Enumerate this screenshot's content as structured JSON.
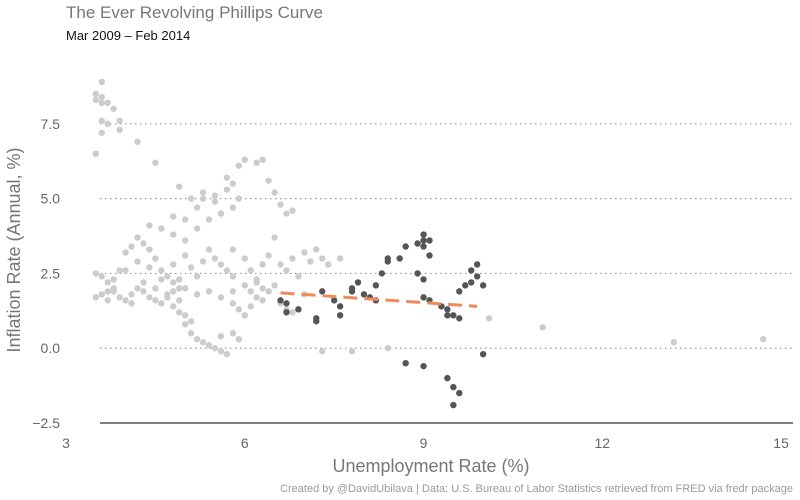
{
  "chart_data": {
    "type": "scatter",
    "title": "The Ever Revolving Phillips Curve",
    "subtitle": "Mar 2009 – Feb 2014",
    "xlabel": "Unemployment Rate (%)",
    "ylabel": "Inflation Rate (Annual, %)",
    "caption": "Created by @DavidUbilava | Data: U.S. Bureau of Labor Statistics retrieved from FRED via fredr package",
    "xlim": [
      3,
      15.2
    ],
    "ylim": [
      -2.7,
      9.8
    ],
    "xticks": [
      3,
      6,
      9,
      12,
      15
    ],
    "yticks": [
      -2.5,
      0.0,
      2.5,
      5.0,
      7.5
    ],
    "xtick_labels": [
      "3",
      "6",
      "9",
      "12",
      "15"
    ],
    "ytick_labels": [
      "−2.5",
      "0.0",
      "2.5",
      "5.0",
      "7.5"
    ],
    "grid": "horizontal dotted",
    "colors": {
      "background_points": "#cccccc",
      "highlight_points": "#555555",
      "trend_line": "#f08a5d",
      "grid": "#999999",
      "axis": "#333333"
    },
    "series": [
      {
        "role": "background",
        "points": [
          [
            3.5,
            8.3
          ],
          [
            3.5,
            8.5
          ],
          [
            3.6,
            8.9
          ],
          [
            3.6,
            8.4
          ],
          [
            3.6,
            8.2
          ],
          [
            3.7,
            8.2
          ],
          [
            3.8,
            8.0
          ],
          [
            3.6,
            7.6
          ],
          [
            3.7,
            7.5
          ],
          [
            3.9,
            7.6
          ],
          [
            3.9,
            7.3
          ],
          [
            3.6,
            7.2
          ],
          [
            4.2,
            6.9
          ],
          [
            3.5,
            6.5
          ],
          [
            4.5,
            6.2
          ],
          [
            3.5,
            2.5
          ],
          [
            3.6,
            2.4
          ],
          [
            3.7,
            2.2
          ],
          [
            3.8,
            1.9
          ],
          [
            3.9,
            2.6
          ],
          [
            4.0,
            3.2
          ],
          [
            4.1,
            3.4
          ],
          [
            4.2,
            3.7
          ],
          [
            4.3,
            3.5
          ],
          [
            4.4,
            3.3
          ],
          [
            4.5,
            3.0
          ],
          [
            4.6,
            2.6
          ],
          [
            4.7,
            2.4
          ],
          [
            4.8,
            2.2
          ],
          [
            4.9,
            2.0
          ],
          [
            3.5,
            1.7
          ],
          [
            3.6,
            1.8
          ],
          [
            3.7,
            1.9
          ],
          [
            3.8,
            2.0
          ],
          [
            3.9,
            1.7
          ],
          [
            4.0,
            1.6
          ],
          [
            4.1,
            1.8
          ],
          [
            4.2,
            2.0
          ],
          [
            4.3,
            1.9
          ],
          [
            4.4,
            1.7
          ],
          [
            4.5,
            1.6
          ],
          [
            4.6,
            1.5
          ],
          [
            4.7,
            1.7
          ],
          [
            4.8,
            1.9
          ],
          [
            4.9,
            1.6
          ],
          [
            3.8,
            2.3
          ],
          [
            4.0,
            2.6
          ],
          [
            4.2,
            2.9
          ],
          [
            4.4,
            2.7
          ],
          [
            4.6,
            2.3
          ],
          [
            4.8,
            2.8
          ],
          [
            5.0,
            3.1
          ],
          [
            5.1,
            2.7
          ],
          [
            5.2,
            2.4
          ],
          [
            5.3,
            2.9
          ],
          [
            5.4,
            3.3
          ],
          [
            5.5,
            3.0
          ],
          [
            5.6,
            2.8
          ],
          [
            5.7,
            2.6
          ],
          [
            5.8,
            2.4
          ],
          [
            3.7,
            1.6
          ],
          [
            4.1,
            1.5
          ],
          [
            4.3,
            2.2
          ],
          [
            4.5,
            2.0
          ],
          [
            4.7,
            1.8
          ],
          [
            4.9,
            2.3
          ],
          [
            5.0,
            2.0
          ],
          [
            5.2,
            1.8
          ],
          [
            5.4,
            1.9
          ],
          [
            5.6,
            1.7
          ],
          [
            5.8,
            1.9
          ],
          [
            6.0,
            2.1
          ],
          [
            6.1,
            1.9
          ],
          [
            6.2,
            2.2
          ],
          [
            6.3,
            2.0
          ],
          [
            4.4,
            4.1
          ],
          [
            4.6,
            4.0
          ],
          [
            4.8,
            4.4
          ],
          [
            4.8,
            3.8
          ],
          [
            5.0,
            4.3
          ],
          [
            5.0,
            3.6
          ],
          [
            5.2,
            4.7
          ],
          [
            5.2,
            4.0
          ],
          [
            5.3,
            5.0
          ],
          [
            5.4,
            4.3
          ],
          [
            5.5,
            5.1
          ],
          [
            5.6,
            4.5
          ],
          [
            5.7,
            5.3
          ],
          [
            5.8,
            4.7
          ],
          [
            5.9,
            5.0
          ],
          [
            4.9,
            5.4
          ],
          [
            5.1,
            5.0
          ],
          [
            5.3,
            5.2
          ],
          [
            5.5,
            4.9
          ],
          [
            5.7,
            5.7
          ],
          [
            5.8,
            5.5
          ],
          [
            5.9,
            6.1
          ],
          [
            6.0,
            6.3
          ],
          [
            6.2,
            6.2
          ],
          [
            6.3,
            6.3
          ],
          [
            6.4,
            5.6
          ],
          [
            6.5,
            5.2
          ],
          [
            6.6,
            4.8
          ],
          [
            6.7,
            4.5
          ],
          [
            6.8,
            4.6
          ],
          [
            4.8,
            1.4
          ],
          [
            4.9,
            1.2
          ],
          [
            5.0,
            0.8
          ],
          [
            5.0,
            1.1
          ],
          [
            5.1,
            0.5
          ],
          [
            5.1,
            0.9
          ],
          [
            5.2,
            0.3
          ],
          [
            5.3,
            0.2
          ],
          [
            5.4,
            0.1
          ],
          [
            5.5,
            0.0
          ],
          [
            5.6,
            -0.1
          ],
          [
            5.6,
            0.4
          ],
          [
            5.7,
            -0.2
          ],
          [
            5.8,
            0.5
          ],
          [
            5.9,
            0.3
          ],
          [
            5.8,
            3.3
          ],
          [
            6.0,
            3.0
          ],
          [
            6.1,
            2.6
          ],
          [
            6.2,
            2.3
          ],
          [
            6.3,
            2.8
          ],
          [
            6.4,
            3.1
          ],
          [
            6.5,
            3.7
          ],
          [
            6.6,
            2.8
          ],
          [
            6.7,
            2.6
          ],
          [
            6.8,
            3.0
          ],
          [
            6.9,
            2.4
          ],
          [
            7.0,
            3.2
          ],
          [
            7.1,
            2.9
          ],
          [
            7.2,
            3.3
          ],
          [
            7.3,
            3.0
          ],
          [
            5.8,
            1.5
          ],
          [
            5.9,
            1.3
          ],
          [
            6.0,
            1.1
          ],
          [
            6.1,
            1.4
          ],
          [
            6.2,
            1.7
          ],
          [
            6.3,
            1.6
          ],
          [
            6.4,
            1.9
          ],
          [
            6.5,
            2.1
          ],
          [
            6.6,
            1.5
          ],
          [
            6.7,
            1.3
          ],
          [
            6.8,
            1.2
          ],
          [
            6.9,
            1.3
          ],
          [
            7.0,
            1.8
          ],
          [
            7.4,
            2.8
          ],
          [
            7.6,
            3.0
          ],
          [
            7.3,
            -0.1
          ],
          [
            7.8,
            -0.1
          ],
          [
            8.4,
            0.0
          ],
          [
            10.1,
            1.0
          ],
          [
            11.0,
            0.7
          ],
          [
            13.2,
            0.2
          ],
          [
            14.7,
            0.3
          ]
        ]
      },
      {
        "role": "highlight",
        "points": [
          [
            6.6,
            1.6
          ],
          [
            6.7,
            1.5
          ],
          [
            6.7,
            1.2
          ],
          [
            6.9,
            1.3
          ],
          [
            7.2,
            1.0
          ],
          [
            7.2,
            0.9
          ],
          [
            7.3,
            1.9
          ],
          [
            7.5,
            1.6
          ],
          [
            7.6,
            1.4
          ],
          [
            7.6,
            1.1
          ],
          [
            7.8,
            1.9
          ],
          [
            7.8,
            2.0
          ],
          [
            7.9,
            2.2
          ],
          [
            8.0,
            1.8
          ],
          [
            8.1,
            1.7
          ],
          [
            8.2,
            1.6
          ],
          [
            8.2,
            2.1
          ],
          [
            8.3,
            2.5
          ],
          [
            8.4,
            2.9
          ],
          [
            8.4,
            3.0
          ],
          [
            8.6,
            3.0
          ],
          [
            8.7,
            3.4
          ],
          [
            8.9,
            3.5
          ],
          [
            9.0,
            3.8
          ],
          [
            9.0,
            3.6
          ],
          [
            9.1,
            3.6
          ],
          [
            9.0,
            3.4
          ],
          [
            9.1,
            3.1
          ],
          [
            8.9,
            2.5
          ],
          [
            9.0,
            2.3
          ],
          [
            9.0,
            1.7
          ],
          [
            9.1,
            1.6
          ],
          [
            9.3,
            1.4
          ],
          [
            9.4,
            1.3
          ],
          [
            9.5,
            1.1
          ],
          [
            9.6,
            1.0
          ],
          [
            9.4,
            1.1
          ],
          [
            9.6,
            1.9
          ],
          [
            9.7,
            2.1
          ],
          [
            9.8,
            2.6
          ],
          [
            9.8,
            2.2
          ],
          [
            9.9,
            2.8
          ],
          [
            9.9,
            2.4
          ],
          [
            10.0,
            2.1
          ],
          [
            10.0,
            -0.2
          ],
          [
            9.0,
            -0.6
          ],
          [
            8.7,
            -0.5
          ],
          [
            9.4,
            -1.0
          ],
          [
            9.5,
            -1.3
          ],
          [
            9.6,
            -1.5
          ],
          [
            9.5,
            -1.9
          ]
        ]
      }
    ],
    "trend_line": {
      "x": [
        6.6,
        9.9
      ],
      "y": [
        1.85,
        1.4
      ]
    }
  }
}
